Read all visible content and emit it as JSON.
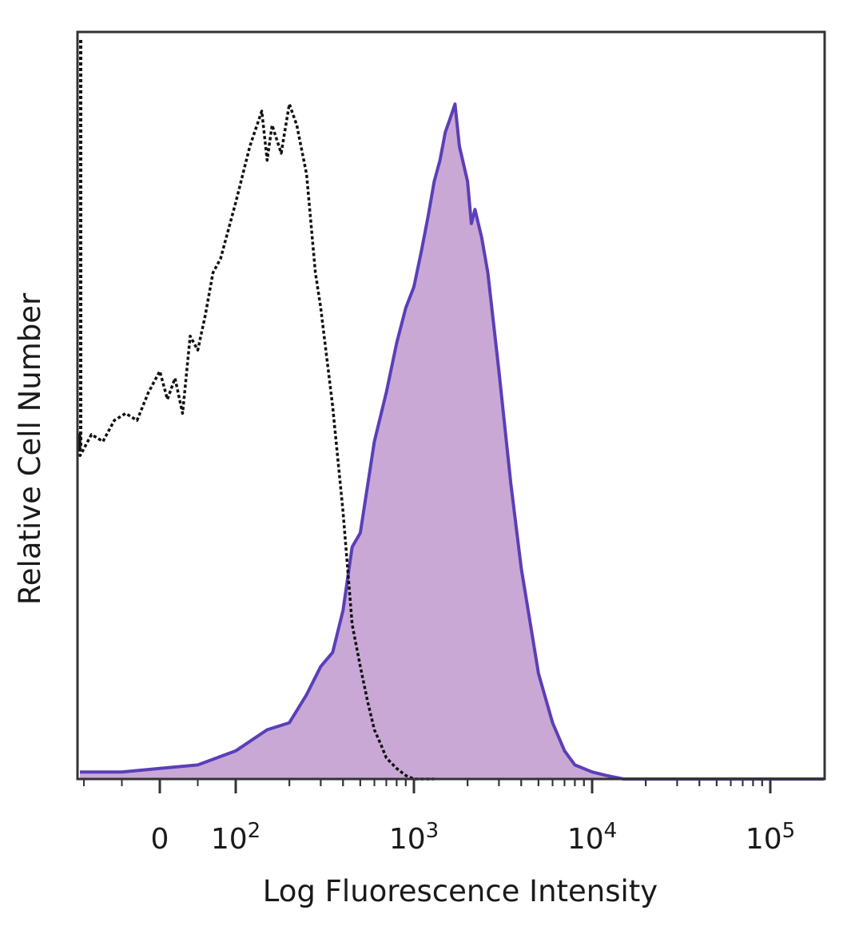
{
  "chart_data": {
    "type": "area",
    "xlabel": "Log Fluorescence Intensity",
    "ylabel": "Relative Cell Number",
    "x_scale": "biexponential",
    "x_ticks": [
      {
        "value": 0,
        "label": "0",
        "exp": ""
      },
      {
        "value": 100,
        "label": "10",
        "exp": "2"
      },
      {
        "value": 1000,
        "label": "10",
        "exp": "3"
      },
      {
        "value": 10000,
        "label": "10",
        "exp": "4"
      },
      {
        "value": 100000,
        "label": "10",
        "exp": "5"
      }
    ],
    "ylim": [
      0,
      100
    ],
    "grid": false,
    "colors": {
      "stained_fill": "#c9a8d6",
      "stained_line": "#5a3fb8",
      "control_line": "#111111"
    },
    "series": [
      {
        "style": "dotted-outline",
        "x": [
          -150,
          -120,
          -105,
          -90,
          -75,
          -60,
          -45,
          -30,
          -15,
          0,
          10,
          20,
          30,
          40,
          50,
          60,
          70,
          80,
          90,
          100,
          120,
          140,
          150,
          160,
          180,
          200,
          220,
          250,
          280,
          300,
          350,
          400,
          450,
          500,
          550,
          600,
          650,
          700,
          800,
          900,
          1000,
          1100,
          1300
        ],
        "y": [
          47,
          49,
          46,
          49,
          48,
          51,
          52,
          51,
          55,
          58,
          54,
          57,
          52,
          63,
          61,
          66,
          72,
          74,
          78,
          82,
          90,
          95,
          88,
          93,
          89,
          96,
          93,
          86,
          72,
          67,
          53,
          38,
          22,
          16,
          11,
          7,
          5,
          3,
          1.5,
          0.5,
          0,
          0,
          0
        ]
      },
      {
        "style": "filled",
        "x": [
          -150,
          -100,
          -50,
          0,
          50,
          100,
          150,
          200,
          250,
          300,
          350,
          400,
          450,
          500,
          600,
          700,
          800,
          900,
          1000,
          1100,
          1200,
          1300,
          1400,
          1500,
          1600,
          1700,
          1800,
          2000,
          2100,
          2200,
          2400,
          2600,
          3000,
          3500,
          4000,
          5000,
          6000,
          7000,
          8000,
          10000,
          12000,
          15000,
          20000,
          50000,
          100000,
          200000
        ],
        "y": [
          1,
          1,
          1,
          1.5,
          2,
          4,
          7,
          8,
          12,
          16,
          18,
          24,
          33,
          35,
          48,
          55,
          62,
          67,
          70,
          75,
          80,
          85,
          88,
          92,
          94,
          96,
          90,
          85,
          79,
          81,
          77,
          72,
          58,
          42,
          30,
          15,
          8,
          4,
          2,
          1,
          0.5,
          0,
          0,
          0,
          0,
          0
        ]
      }
    ]
  }
}
